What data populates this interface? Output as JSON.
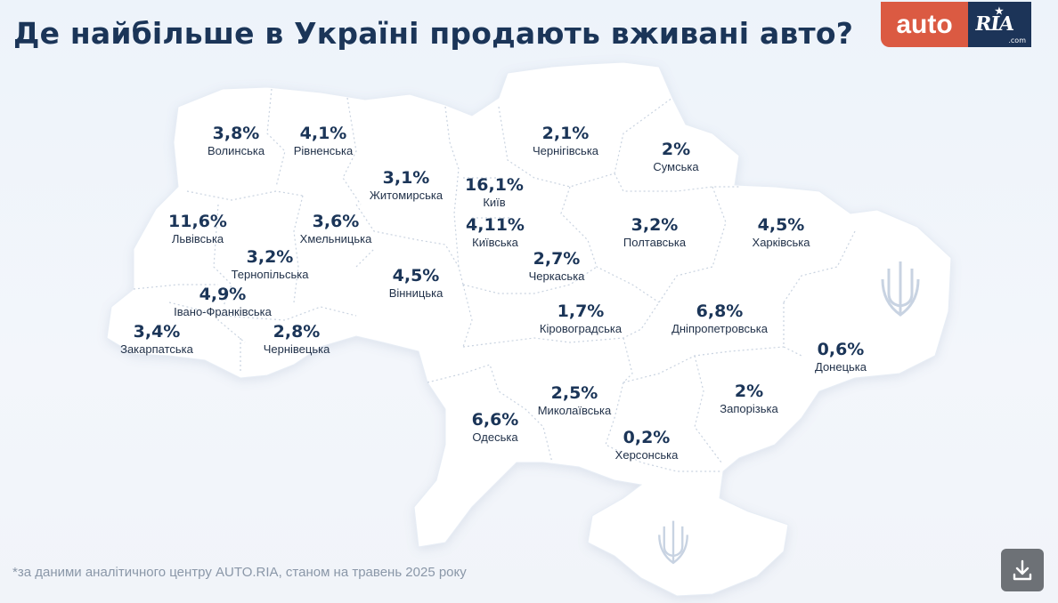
{
  "header": {
    "title": "Де найбільше в Україні продають вживані авто?",
    "logo_left": "auto",
    "logo_right": "RIA",
    "logo_sub": ".com"
  },
  "regions": [
    {
      "id": "volyn",
      "pct": "3,8%",
      "name": "Волинська"
    },
    {
      "id": "rivne",
      "pct": "4,1%",
      "name": "Рівненська"
    },
    {
      "id": "zhytomyr",
      "pct": "3,1%",
      "name": "Житомирська"
    },
    {
      "id": "kyiv_city",
      "pct": "16,1%",
      "name": "Київ"
    },
    {
      "id": "kyiv_obl",
      "pct": "4,11%",
      "name": "Київська"
    },
    {
      "id": "chernihiv",
      "pct": "2,1%",
      "name": "Чернігівська"
    },
    {
      "id": "sumy",
      "pct": "2%",
      "name": "Сумська"
    },
    {
      "id": "lviv",
      "pct": "11,6%",
      "name": "Львівська"
    },
    {
      "id": "khmelnytskyi",
      "pct": "3,6%",
      "name": "Хмельницька"
    },
    {
      "id": "ternopil",
      "pct": "3,2%",
      "name": "Тернопільська"
    },
    {
      "id": "ivano_frankivsk",
      "pct": "4,9%",
      "name": "Івано-Франківська"
    },
    {
      "id": "zakarpattia",
      "pct": "3,4%",
      "name": "Закарпатська"
    },
    {
      "id": "chernivtsi",
      "pct": "2,8%",
      "name": "Чернівецька"
    },
    {
      "id": "vinnytsia",
      "pct": "4,5%",
      "name": "Вінницька"
    },
    {
      "id": "cherkasy",
      "pct": "2,7%",
      "name": "Черкаська"
    },
    {
      "id": "poltava",
      "pct": "3,2%",
      "name": "Полтавська"
    },
    {
      "id": "kharkiv",
      "pct": "4,5%",
      "name": "Харківська"
    },
    {
      "id": "kirovohrad",
      "pct": "1,7%",
      "name": "Кіровоградська"
    },
    {
      "id": "dnipro",
      "pct": "6,8%",
      "name": "Дніпропетровська"
    },
    {
      "id": "donetsk",
      "pct": "0,6%",
      "name": "Донецька"
    },
    {
      "id": "mykolaiv",
      "pct": "2,5%",
      "name": "Миколаївська"
    },
    {
      "id": "zaporizhzhia",
      "pct": "2%",
      "name": "Запорізька"
    },
    {
      "id": "odesa",
      "pct": "6,6%",
      "name": "Одеська"
    },
    {
      "id": "kherson",
      "pct": "0,2%",
      "name": "Херсонська"
    }
  ],
  "footnote": "*за даними аналітичного центру AUTO.RIA, станом на травень 2025 року",
  "icons": {
    "download": "download-icon",
    "trident": "trident-icon"
  },
  "colors": {
    "title": "#1b3558",
    "logo_auto": "#db5a42",
    "logo_ria": "#1c3458",
    "map_fill": "#ffffff"
  }
}
